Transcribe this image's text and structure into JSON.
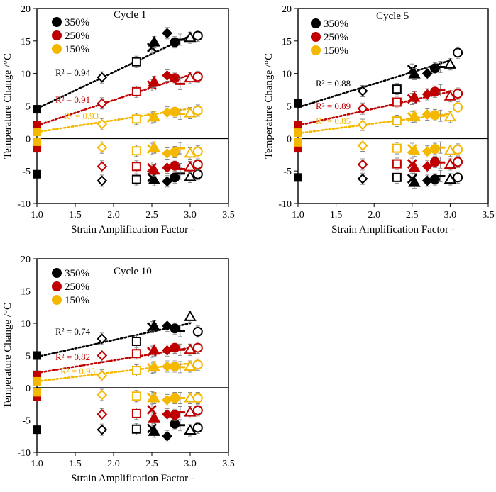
{
  "colors": {
    "s350": "#000000",
    "s250": "#c00000",
    "s150": "#f5b800"
  },
  "chart_data": [
    {
      "type": "scatter",
      "title": "Cycle 1",
      "xlabel": "Strain Amplification Factor -",
      "ylabel": "Temperature Change /°C",
      "xlim": [
        1.0,
        3.5
      ],
      "ylim": [
        -10,
        20
      ],
      "xticks": [
        "1.0",
        "1.5",
        "2.0",
        "2.5",
        "3.0",
        "3.5"
      ],
      "yticks": [
        "-10",
        "-5",
        "0",
        "5",
        "10",
        "15",
        "20"
      ],
      "legend": [
        "350%",
        "250%",
        "150%"
      ],
      "trendlines": [
        {
          "series": "350%",
          "r2_label": "R² = 0.94",
          "x": [
            1.0,
            3.0
          ],
          "y": [
            4.6,
            15.8
          ]
        },
        {
          "series": "250%",
          "r2_label": "R² = 0.91",
          "x": [
            1.0,
            3.0
          ],
          "y": [
            2.0,
            9.8
          ]
        },
        {
          "series": "150%",
          "r2_label": "R² = 0.93",
          "x": [
            1.0,
            3.0
          ],
          "y": [
            1.0,
            4.6
          ]
        }
      ],
      "series": [
        {
          "name": "350%",
          "heating": [
            [
              1.0,
              4.5
            ],
            [
              1.85,
              9.4
            ],
            [
              2.3,
              11.8
            ],
            [
              2.5,
              14.0
            ],
            [
              2.53,
              14.8
            ],
            [
              2.7,
              16.2
            ],
            [
              2.8,
              14.8
            ],
            [
              2.87,
              15.2
            ],
            [
              3.0,
              15.5
            ],
            [
              3.1,
              15.8
            ]
          ],
          "cooling": [
            [
              1.0,
              -5.5
            ],
            [
              1.85,
              -6.5
            ],
            [
              2.3,
              -6.3
            ],
            [
              2.5,
              -6.0
            ],
            [
              2.53,
              -6.4
            ],
            [
              2.7,
              -6.6
            ],
            [
              2.8,
              -6.0
            ],
            [
              2.87,
              -5.4
            ],
            [
              3.0,
              -5.9
            ],
            [
              3.1,
              -5.5
            ]
          ]
        },
        {
          "name": "250%",
          "heating": [
            [
              1.0,
              2.0
            ],
            [
              1.85,
              5.4
            ],
            [
              2.3,
              7.2
            ],
            [
              2.5,
              8.2
            ],
            [
              2.53,
              8.7
            ],
            [
              2.7,
              9.7
            ],
            [
              2.8,
              9.3
            ],
            [
              2.87,
              8.4
            ],
            [
              3.0,
              9.3
            ],
            [
              3.1,
              9.5
            ]
          ],
          "cooling": [
            [
              1.0,
              -1.5
            ],
            [
              1.85,
              -4.3
            ],
            [
              2.3,
              -4.3
            ],
            [
              2.5,
              -4.5
            ],
            [
              2.53,
              -4.9
            ],
            [
              2.7,
              -4.5
            ],
            [
              2.8,
              -4.2
            ],
            [
              2.87,
              -4.7
            ],
            [
              3.0,
              -4.4
            ],
            [
              3.1,
              -4.0
            ]
          ]
        },
        {
          "name": "150%",
          "heating": [
            [
              1.0,
              1.0
            ],
            [
              1.85,
              2.2
            ],
            [
              2.3,
              3.0
            ],
            [
              2.5,
              3.2
            ],
            [
              2.53,
              3.3
            ],
            [
              2.7,
              4.0
            ],
            [
              2.8,
              4.1
            ],
            [
              2.87,
              3.8
            ],
            [
              3.0,
              3.9
            ],
            [
              3.1,
              4.3
            ]
          ],
          "cooling": [
            [
              1.0,
              -0.5
            ],
            [
              1.85,
              -1.4
            ],
            [
              2.3,
              -1.9
            ],
            [
              2.5,
              -1.6
            ],
            [
              2.53,
              -1.4
            ],
            [
              2.7,
              -2.3
            ],
            [
              2.8,
              -2.1
            ],
            [
              2.87,
              -1.5
            ],
            [
              3.0,
              -2.3
            ],
            [
              3.1,
              -2.0
            ]
          ]
        }
      ]
    },
    {
      "type": "scatter",
      "title": "Cycle 5",
      "xlabel": "Strain Amplification Factor -",
      "ylabel": "Temperature Change /°C",
      "xlim": [
        1.0,
        3.5
      ],
      "ylim": [
        -10,
        20
      ],
      "xticks": [
        "1.0",
        "1.5",
        "2.0",
        "2.5",
        "3.0",
        "3.5"
      ],
      "yticks": [
        "-10",
        "-5",
        "0",
        "5",
        "10",
        "15",
        "20"
      ],
      "legend": [
        "350%",
        "250%",
        "150%"
      ],
      "trendlines": [
        {
          "series": "350%",
          "r2_label": "R² = 0.88",
          "x": [
            1.0,
            3.0
          ],
          "y": [
            4.8,
            12.0
          ]
        },
        {
          "series": "250%",
          "r2_label": "R² = 0.89",
          "x": [
            1.0,
            3.0
          ],
          "y": [
            2.0,
            7.2
          ]
        },
        {
          "series": "150%",
          "r2_label": "R² = 0.85",
          "x": [
            1.0,
            3.0
          ],
          "y": [
            0.8,
            3.8
          ]
        }
      ],
      "series": [
        {
          "name": "350%",
          "heating": [
            [
              1.0,
              5.4
            ],
            [
              1.85,
              7.3
            ],
            [
              2.3,
              7.6
            ],
            [
              2.5,
              10.6
            ],
            [
              2.53,
              9.9
            ],
            [
              2.7,
              10.0
            ],
            [
              2.8,
              10.8
            ],
            [
              2.87,
              11.0
            ],
            [
              3.0,
              11.4
            ],
            [
              3.1,
              13.2
            ]
          ],
          "cooling": [
            [
              1.0,
              -6.0
            ],
            [
              1.85,
              -6.2
            ],
            [
              2.3,
              -6.0
            ],
            [
              2.5,
              -6.2
            ],
            [
              2.53,
              -6.8
            ],
            [
              2.7,
              -6.5
            ],
            [
              2.8,
              -6.3
            ],
            [
              2.87,
              -5.8
            ],
            [
              3.0,
              -6.3
            ],
            [
              3.1,
              -6.0
            ]
          ]
        },
        {
          "name": "250%",
          "heating": [
            [
              1.0,
              2.0
            ],
            [
              1.85,
              4.6
            ],
            [
              2.3,
              5.6
            ],
            [
              2.5,
              6.1
            ],
            [
              2.53,
              6.3
            ],
            [
              2.7,
              6.8
            ],
            [
              2.8,
              7.2
            ],
            [
              2.87,
              7.4
            ],
            [
              3.0,
              6.5
            ],
            [
              3.1,
              6.9
            ]
          ],
          "cooling": [
            [
              1.0,
              -1.5
            ],
            [
              1.85,
              -4.0
            ],
            [
              2.3,
              -3.9
            ],
            [
              2.5,
              -3.9
            ],
            [
              2.53,
              -4.5
            ],
            [
              2.7,
              -4.3
            ],
            [
              2.8,
              -3.6
            ],
            [
              2.87,
              -3.7
            ],
            [
              3.0,
              -4.0
            ],
            [
              3.1,
              -3.6
            ]
          ]
        },
        {
          "name": "150%",
          "heating": [
            [
              1.0,
              0.9
            ],
            [
              1.85,
              2.1
            ],
            [
              2.3,
              2.7
            ],
            [
              2.5,
              3.3
            ],
            [
              2.53,
              3.4
            ],
            [
              2.7,
              3.7
            ],
            [
              2.8,
              3.6
            ],
            [
              2.87,
              3.5
            ],
            [
              3.0,
              3.3
            ],
            [
              3.1,
              4.8
            ]
          ],
          "cooling": [
            [
              1.0,
              -0.6
            ],
            [
              1.85,
              -1.1
            ],
            [
              2.3,
              -1.5
            ],
            [
              2.5,
              -1.6
            ],
            [
              2.53,
              -1.9
            ],
            [
              2.7,
              -2.0
            ],
            [
              2.8,
              -1.6
            ],
            [
              2.87,
              -1.4
            ],
            [
              3.0,
              -1.9
            ],
            [
              3.1,
              -1.7
            ]
          ]
        }
      ]
    },
    {
      "type": "scatter",
      "title": "Cycle 10",
      "xlabel": "Strain Amplification Factor -",
      "ylabel": "Temperature Change /°C",
      "xlim": [
        1.0,
        3.5
      ],
      "ylim": [
        -10,
        20
      ],
      "xticks": [
        "1.0",
        "1.5",
        "2.0",
        "2.5",
        "3.0",
        "3.5"
      ],
      "yticks": [
        "-10",
        "-5",
        "0",
        "5",
        "10",
        "15",
        "20"
      ],
      "legend": [
        "350%",
        "250%",
        "150%"
      ],
      "trendlines": [
        {
          "series": "350%",
          "r2_label": "R² = 0.74",
          "x": [
            1.0,
            3.0
          ],
          "y": [
            4.8,
            10.0
          ]
        },
        {
          "series": "250%",
          "r2_label": "R² = 0.82",
          "x": [
            1.0,
            3.0
          ],
          "y": [
            2.3,
            6.2
          ]
        },
        {
          "series": "150%",
          "r2_label": "R² = 0.93",
          "x": [
            1.0,
            3.0
          ],
          "y": [
            1.0,
            3.8
          ]
        }
      ],
      "series": [
        {
          "name": "350%",
          "heating": [
            [
              1.0,
              5.0
            ],
            [
              1.85,
              7.6
            ],
            [
              2.3,
              7.2
            ],
            [
              2.5,
              9.4
            ],
            [
              2.53,
              9.5
            ],
            [
              2.7,
              9.6
            ],
            [
              2.8,
              9.2
            ],
            [
              2.87,
              8.8
            ],
            [
              3.0,
              11.0
            ],
            [
              3.1,
              8.7
            ]
          ],
          "cooling": [
            [
              1.0,
              -6.5
            ],
            [
              1.85,
              -6.5
            ],
            [
              2.3,
              -6.4
            ],
            [
              2.5,
              -6.3
            ],
            [
              2.53,
              -6.8
            ],
            [
              2.7,
              -7.5
            ],
            [
              2.8,
              -5.6
            ],
            [
              2.87,
              -5.8
            ],
            [
              3.0,
              -6.6
            ],
            [
              3.1,
              -6.2
            ]
          ]
        },
        {
          "name": "250%",
          "heating": [
            [
              1.0,
              2.0
            ],
            [
              1.85,
              5.0
            ],
            [
              2.3,
              5.3
            ],
            [
              2.5,
              5.6
            ],
            [
              2.53,
              5.8
            ],
            [
              2.7,
              5.8
            ],
            [
              2.8,
              6.2
            ],
            [
              2.87,
              5.9
            ],
            [
              3.0,
              5.9
            ],
            [
              3.1,
              6.2
            ]
          ],
          "cooling": [
            [
              1.0,
              -1.4
            ],
            [
              1.85,
              -4.1
            ],
            [
              2.3,
              -4.0
            ],
            [
              2.5,
              -3.4
            ],
            [
              2.53,
              -4.7
            ],
            [
              2.7,
              -4.1
            ],
            [
              2.8,
              -4.2
            ],
            [
              2.87,
              -3.8
            ],
            [
              3.0,
              -3.8
            ],
            [
              3.1,
              -3.5
            ]
          ]
        },
        {
          "name": "150%",
          "heating": [
            [
              1.0,
              1.0
            ],
            [
              1.85,
              1.9
            ],
            [
              2.3,
              2.7
            ],
            [
              2.5,
              3.1
            ],
            [
              2.53,
              3.2
            ],
            [
              2.7,
              3.3
            ],
            [
              2.8,
              3.3
            ],
            [
              2.87,
              3.2
            ],
            [
              3.0,
              3.3
            ],
            [
              3.1,
              3.6
            ]
          ],
          "cooling": [
            [
              1.0,
              -0.7
            ],
            [
              1.85,
              -1.1
            ],
            [
              2.3,
              -1.3
            ],
            [
              2.5,
              -1.5
            ],
            [
              2.53,
              -1.6
            ],
            [
              2.7,
              -1.9
            ],
            [
              2.8,
              -1.6
            ],
            [
              2.87,
              -1.6
            ],
            [
              3.0,
              -1.6
            ],
            [
              3.1,
              -1.6
            ]
          ]
        }
      ]
    }
  ]
}
